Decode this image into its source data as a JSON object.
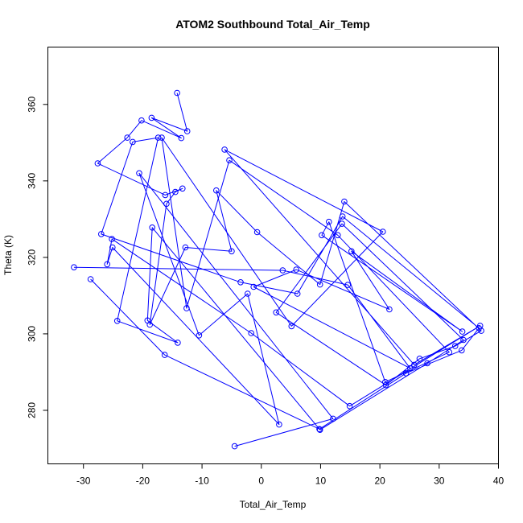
{
  "chart_data": {
    "type": "line",
    "title": "ATOM2 Southbound Total_Air_Temp",
    "xlabel": "Total_Air_Temp",
    "ylabel": "Theta (K)",
    "xlim": [
      -36,
      40
    ],
    "ylim": [
      266,
      375
    ],
    "xticks": [
      -30,
      -20,
      -10,
      0,
      10,
      20,
      30,
      40
    ],
    "yticks": [
      280,
      300,
      320,
      340,
      360
    ],
    "grid": false,
    "series": [
      {
        "color": "#0000ff",
        "marker": "open-circle",
        "x": [
          -14.2,
          -12.5,
          -18.5,
          -13.5,
          -20.2,
          -22.6,
          -27.6,
          -16.2,
          -13.3,
          -14.5,
          -16.0,
          -18.8,
          -12.8,
          -5.0,
          -7.6,
          -0.7,
          9.9,
          14.0,
          37.1,
          32.7,
          26.7,
          21.0,
          2.5,
          13.6,
          34.1,
          28.0,
          9.9,
          -18.4,
          -19.2,
          -14.1,
          -24.3,
          -17.4,
          -21.7,
          -27.0,
          -3.5,
          6.1,
          13.7,
          36.7,
          33.8,
          24.4,
          9.8,
          -16.3,
          -28.8
        ],
        "y": [
          363.0,
          353.0,
          356.5,
          351.2,
          355.8,
          351.3,
          344.6,
          336.3,
          338.0,
          337.1,
          334.0,
          302.4,
          322.6,
          321.6,
          337.5,
          326.6,
          312.9,
          334.6,
          300.8,
          296.8,
          293.5,
          286.6,
          305.6,
          328.8,
          298.4,
          292.3,
          274.9,
          327.8,
          303.5,
          297.7,
          303.4,
          351.3,
          350.2,
          326.1,
          313.5,
          310.5,
          330.7,
          301.5,
          295.7,
          289.7,
          275.1,
          294.5,
          314.3
        ]
      },
      {
        "color": "#0000ff",
        "marker": "open-circle",
        "x": [
          -4.5,
          12.1,
          -20.6,
          -10.5,
          -2.3,
          3.0,
          -25.1,
          -26.0,
          -25.2,
          -1.7,
          14.9,
          36.9,
          25.8,
          -6.2,
          20.5,
          5.1,
          -16.8,
          -12.6,
          -5.4,
          12.9,
          31.7,
          20.9,
          11.4,
          10.2,
          33.9,
          15.2,
          21.6,
          5.9,
          -1.3,
          25.1,
          14.6,
          3.6,
          -31.6
        ],
        "y": [
          270.6,
          277.8,
          342.0,
          299.6,
          310.5,
          276.3,
          322.6,
          318.2,
          324.8,
          300.2,
          281.1,
          302.1,
          291.9,
          348.2,
          326.7,
          302.0,
          351.3,
          306.7,
          345.4,
          325.8,
          295.2,
          287.4,
          329.3,
          325.8,
          300.6,
          321.6,
          306.4,
          316.8,
          312.3,
          291.0,
          312.8,
          316.6,
          317.4
        ]
      }
    ]
  }
}
